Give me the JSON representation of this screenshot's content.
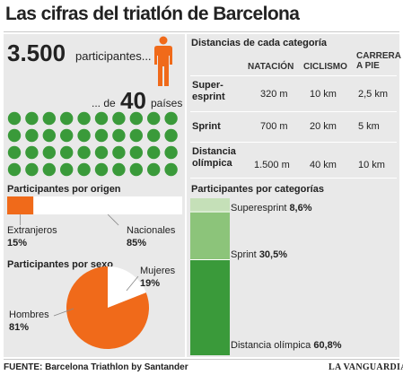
{
  "title": "Las cifras del triatlón de Barcelona",
  "participants": {
    "count": "3.500",
    "count_label": "participantes...",
    "countries_prefix": "... de",
    "countries": "40",
    "countries_label": "países",
    "dots_total": 40
  },
  "colors": {
    "green": "#3a9a3a",
    "orange": "#f06a1a",
    "light_green": "#c5e0b8",
    "mid_green": "#8cc47a",
    "dark_green": "#3a9a3a",
    "panel_bg": "#e9e9e9"
  },
  "distances": {
    "title": "Distancias de cada categoría",
    "columns": [
      "NATACIÓN",
      "CICLISMO",
      "CARRERA A PIE"
    ],
    "rows": [
      {
        "name": "Super-esprint",
        "values": [
          "320 m",
          "10 km",
          "2,5 km"
        ]
      },
      {
        "name": "Sprint",
        "values": [
          "700 m",
          "20 km",
          "5 km"
        ]
      },
      {
        "name": "Distancia olímpica",
        "values": [
          "1.500 m",
          "40 km",
          "10 km"
        ]
      }
    ]
  },
  "chart_data": [
    {
      "type": "bar",
      "title": "Participantes por origen",
      "categories": [
        "Extranjeros",
        "Nacionales"
      ],
      "values": [
        15,
        85
      ],
      "value_labels": [
        "15%",
        "85%"
      ],
      "ylim": [
        0,
        100
      ]
    },
    {
      "type": "pie",
      "title": "Participantes por sexo",
      "categories": [
        "Hombres",
        "Mujeres"
      ],
      "values": [
        81,
        19
      ],
      "value_labels": [
        "81%",
        "19%"
      ]
    },
    {
      "type": "bar",
      "title": "Participantes por categorías",
      "categories": [
        "Superesprint",
        "Sprint",
        "Distancia olímpica"
      ],
      "values": [
        8.6,
        30.5,
        60.8
      ],
      "value_labels": [
        "8,6%",
        "30,5%",
        "60,8%"
      ],
      "ylim": [
        0,
        100
      ]
    }
  ],
  "footer": {
    "source": "FUENTE: Barcelona Triathlon by Santander",
    "brand": "LA VANGUARDIA"
  }
}
